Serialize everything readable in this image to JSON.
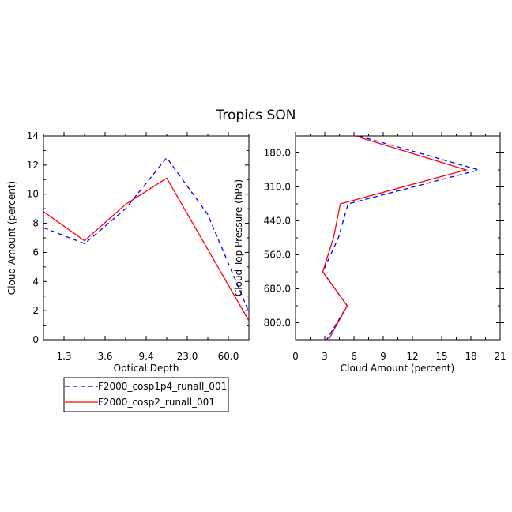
{
  "title": "Tropics SON",
  "legend": {
    "placement": "bottom-left",
    "entries": [
      {
        "label": "F2000_cosp1p4_runall_001",
        "color": "#0000ff",
        "style": "dashed"
      },
      {
        "label": "F2000_cosp2_runall_001",
        "color": "#ff0000",
        "style": "solid"
      }
    ]
  },
  "chart_data": [
    {
      "type": "line",
      "xlabel": "Optical Depth",
      "ylabel": "Cloud Amount (percent)",
      "ylim": [
        0,
        14
      ],
      "x_tick_labels": [
        "1.3",
        "3.6",
        "9.4",
        "23.0",
        "60.0"
      ],
      "y_tick_labels": [
        "0",
        "2",
        "4",
        "6",
        "8",
        "10",
        "12",
        "14"
      ],
      "grid": false,
      "series": [
        {
          "name": "F2000_cosp1p4_runall_001",
          "color": "#0000ff",
          "style": "dashed",
          "values": [
            7.7,
            6.6,
            9.0,
            12.5,
            8.6,
            1.9
          ]
        },
        {
          "name": "F2000_cosp2_runall_001",
          "color": "#ff0000",
          "style": "solid",
          "values": [
            8.8,
            6.8,
            9.3,
            11.1,
            6.2,
            1.3
          ]
        }
      ]
    },
    {
      "type": "line",
      "xlabel": "Cloud Amount (percent)",
      "ylabel": "Cloud Top Pressure (hPa)",
      "xlim": [
        0,
        21
      ],
      "x_tick_labels": [
        "0",
        "3",
        "6",
        "9",
        "12",
        "15",
        "18",
        "21"
      ],
      "y_tick_labels": [
        "180.0",
        "310.0",
        "440.0",
        "560.0",
        "680.0",
        "800.0"
      ],
      "grid": false,
      "series": [
        {
          "name": "F2000_cosp1p4_runall_001",
          "color": "#0000ff",
          "style": "dashed",
          "values": [
            6.5,
            18.8,
            5.4,
            4.4,
            2.8,
            5.3,
            3.2
          ]
        },
        {
          "name": "F2000_cosp2_runall_001",
          "color": "#ff0000",
          "style": "solid",
          "values": [
            6.1,
            17.5,
            4.6,
            3.9,
            2.8,
            5.3,
            3.4
          ]
        }
      ]
    }
  ]
}
